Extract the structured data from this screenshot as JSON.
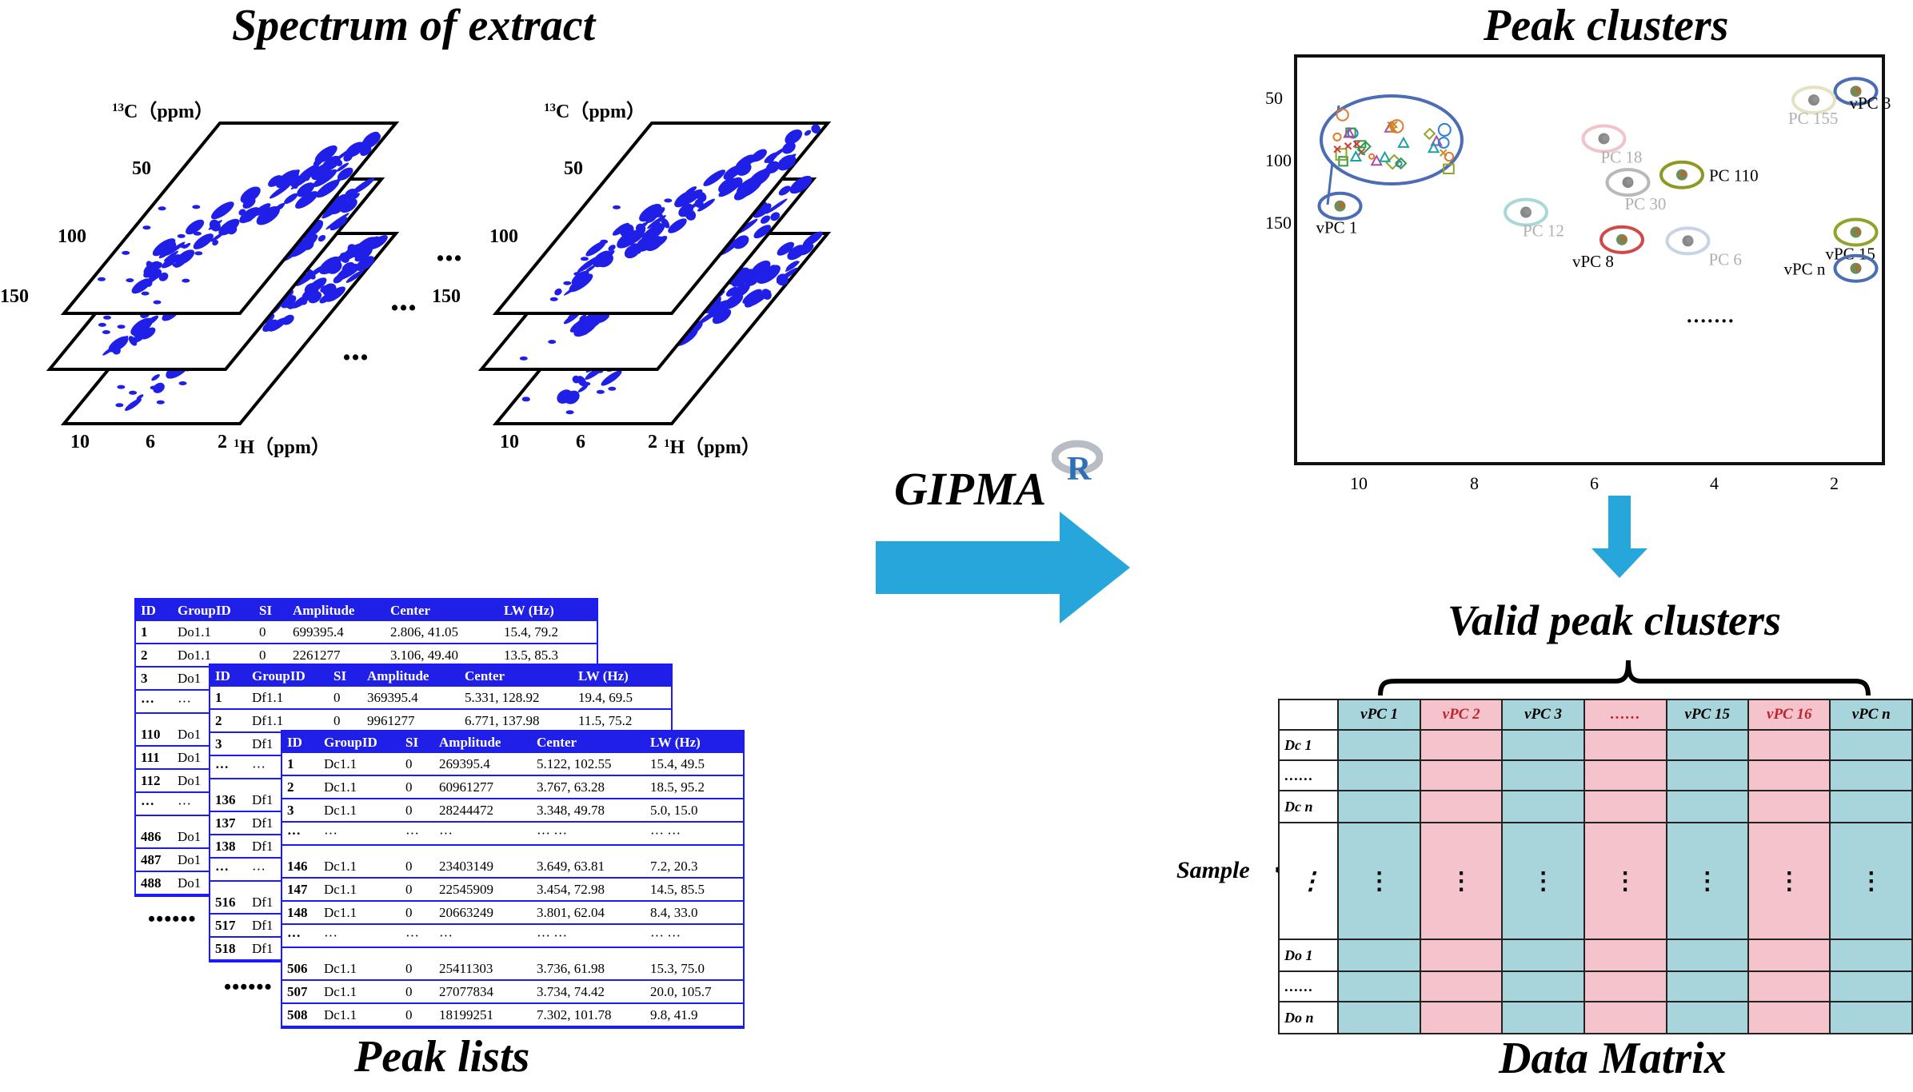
{
  "titles": {
    "spectrum": "Spectrum of extract",
    "peak_lists": "Peak lists",
    "gipma": "GIPMA",
    "r_logo": "R",
    "peak_clusters": "Peak clusters",
    "valid_peak_clusters": "Valid  peak clusters",
    "data_matrix": "Data Matrix"
  },
  "spectrum": {
    "c_axis_label": "13C（ppm）",
    "c_sup": "13",
    "c_rest": "C（ppm）",
    "h_axis_label": "1H（ppm）",
    "h_sup": "1",
    "h_rest": "H（ppm）",
    "c_ticks": [
      "50",
      "100",
      "150"
    ],
    "h_ticks": [
      "10",
      "6",
      "2"
    ],
    "ellipsis": "..."
  },
  "peak_tables": [
    {
      "headers": [
        "ID",
        "GroupID",
        "SI",
        "Amplitude",
        "Center",
        "LW (Hz)"
      ],
      "rows": [
        [
          "1",
          "Do1.1",
          "0",
          "699395.4",
          "2.806, 41.05",
          "15.4,  79.2"
        ],
        [
          "2",
          "Do1.1",
          "0",
          "2261277",
          "3.106, 49.40",
          "13.5,  85.3"
        ],
        [
          "3",
          "Do1",
          "",
          "",
          "",
          ""
        ],
        [
          "···",
          "···",
          "",
          "",
          "",
          ""
        ],
        [
          "110",
          "Do1",
          "",
          "",
          "",
          ""
        ],
        [
          "111",
          "Do1",
          "",
          "",
          "",
          ""
        ],
        [
          "112",
          "Do1",
          "",
          "",
          "",
          ""
        ],
        [
          "···",
          "···",
          "",
          "",
          "",
          ""
        ],
        [
          "486",
          "Do1",
          "",
          "",
          "",
          ""
        ],
        [
          "487",
          "Do1",
          "",
          "",
          "",
          ""
        ],
        [
          "488",
          "Do1",
          "",
          "",
          "",
          ""
        ]
      ]
    },
    {
      "headers": [
        "ID",
        "GroupID",
        "SI",
        "Amplitude",
        "Center",
        "LW (Hz)"
      ],
      "rows": [
        [
          "1",
          "Df1.1",
          "0",
          "369395.4",
          "5.331, 128.92",
          "19.4,  69.5"
        ],
        [
          "2",
          "Df1.1",
          "0",
          "9961277",
          "6.771, 137.98",
          "11.5,  75.2"
        ],
        [
          "3",
          "Df1",
          "",
          "",
          "",
          ""
        ],
        [
          "···",
          "···",
          "",
          "",
          "",
          ""
        ],
        [
          "136",
          "Df1",
          "",
          "",
          "",
          ""
        ],
        [
          "137",
          "Df1",
          "",
          "",
          "",
          ""
        ],
        [
          "138",
          "Df1",
          "",
          "",
          "",
          ""
        ],
        [
          "···",
          "···",
          "",
          "",
          "",
          ""
        ],
        [
          "516",
          "Df1",
          "",
          "",
          "",
          ""
        ],
        [
          "517",
          "Df1",
          "",
          "",
          "",
          ""
        ],
        [
          "518",
          "Df1",
          "",
          "",
          "",
          ""
        ]
      ]
    },
    {
      "headers": [
        "ID",
        "GroupID",
        "SI",
        "Amplitude",
        "Center",
        "LW (Hz)"
      ],
      "rows": [
        [
          "1",
          "Dc1.1",
          "0",
          "269395.4",
          "5.122, 102.55",
          "15.4,  49.5"
        ],
        [
          "2",
          "Dc1.1",
          "0",
          "60961277",
          "3.767,  63.28",
          "18.5,  95.2"
        ],
        [
          "3",
          "Dc1.1",
          "0",
          "28244472",
          "3.348,  49.78",
          "5.0,    15.0"
        ],
        [
          "···",
          "···",
          "···",
          "···",
          "···    ···",
          "···    ···"
        ],
        [
          "146",
          "Dc1.1",
          "0",
          "23403149",
          "3.649,  63.81",
          "7.2,    20.3"
        ],
        [
          "147",
          "Dc1.1",
          "0",
          "22545909",
          "3.454,  72.98",
          "14.5,  85.5"
        ],
        [
          "148",
          "Dc1.1",
          "0",
          "20663249",
          "3.801,  62.04",
          "8.4,    33.0"
        ],
        [
          "···",
          "···",
          "···",
          "···",
          "···    ···",
          "···    ···"
        ],
        [
          "506",
          "Dc1.1",
          "0",
          "25411303",
          "3.736,  61.98",
          "15.3,  75.0"
        ],
        [
          "507",
          "Dc1.1",
          "0",
          "27077834",
          "3.734,  74.42",
          "20.0, 105.7"
        ],
        [
          "508",
          "Dc1.1",
          "0",
          "18199251",
          "7.302, 101.78",
          "9.8,    41.9"
        ]
      ]
    }
  ],
  "peak_list_ellipsis_1": "••••••",
  "peak_list_ellipsis_2": "••••••",
  "cluster_plot": {
    "y_ticks": [
      "50",
      "100",
      "150"
    ],
    "x_ticks": [
      "10",
      "8",
      "6",
      "4",
      "2"
    ],
    "ellipsis": "·······",
    "clusters": [
      {
        "label": "vPC 3",
        "h": 1.7,
        "c": 45,
        "ring": "#4c6cb3",
        "valid": true
      },
      {
        "label": "PC 155",
        "h": 2.4,
        "c": 52,
        "ring": "#e3e2c2",
        "valid": false
      },
      {
        "label": "PC 18",
        "h": 5.9,
        "c": 83,
        "ring": "#f1c4cc",
        "valid": false
      },
      {
        "label": "PC 110",
        "h": 4.6,
        "c": 112,
        "ring": "#8c9a20",
        "valid": true
      },
      {
        "label": "PC 30",
        "h": 5.5,
        "c": 118,
        "ring": "#b9b9b9",
        "valid": false
      },
      {
        "label": "vPC 1",
        "h": 10.3,
        "c": 137,
        "ring": "#4c6cb3",
        "valid": true
      },
      {
        "label": "PC 12",
        "h": 7.2,
        "c": 142,
        "ring": "#a9d8d8",
        "valid": false
      },
      {
        "label": "vPC 8",
        "h": 5.6,
        "c": 164,
        "ring": "#d04a4a",
        "valid": true
      },
      {
        "label": "PC 6",
        "h": 4.5,
        "c": 165,
        "ring": "#c9d3e8",
        "valid": false
      },
      {
        "label": "vPC 15",
        "h": 1.7,
        "c": 158,
        "ring": "#8ea52a",
        "valid": true
      },
      {
        "label": "vPC n",
        "h": 1.7,
        "c": 187,
        "ring": "#4c6cb3",
        "valid": true
      }
    ]
  },
  "data_matrix": {
    "columns": [
      "vPC 1",
      "vPC 2",
      "vPC 3",
      "……",
      "vPC 15",
      "vPC 16",
      "vPC n"
    ],
    "column_colors": [
      "teal",
      "pink",
      "teal",
      "pink",
      "teal",
      "pink",
      "teal"
    ],
    "rows": [
      "Dc 1",
      "……",
      "Dc n",
      "",
      "Do 1",
      "……",
      "Do n"
    ],
    "sample_label": "Sample",
    "cell_ellipsis": "⋮",
    "colors": {
      "teal": "#a8d5db",
      "pink": "#f4c3cb",
      "red_text": "#c0252b"
    }
  },
  "colors": {
    "arrow": "#27a6dc",
    "peak_blue": "#1f1fe8"
  }
}
